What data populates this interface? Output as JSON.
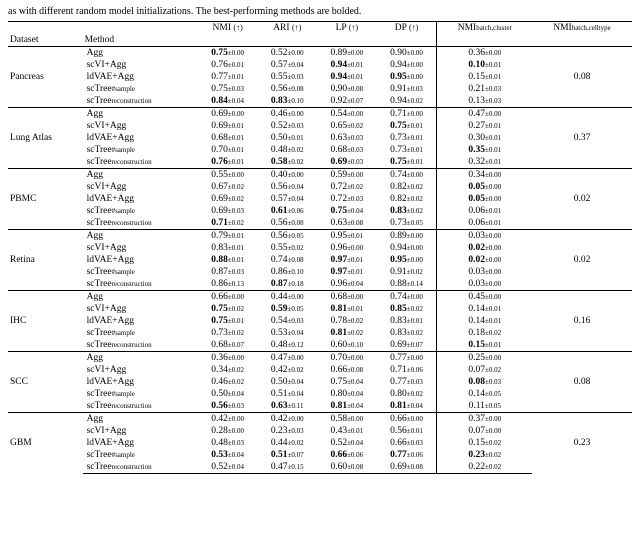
{
  "caption_fragment": "as with different random model initializations. The best-performing methods are bolded.",
  "header": {
    "dataset": "Dataset",
    "method": "Method",
    "nmi": "NMI",
    "ari": "ARI",
    "lp": "LP",
    "dp": "DP",
    "nmi_bc": "NMI",
    "nmi_bc_sub": "batch,cluster",
    "nmi_bt": "NMI",
    "nmi_bt_sub": "batch,celltype",
    "arrow": "(↑)"
  },
  "methods": {
    "agg": "Agg",
    "scvi": "scVI+Agg",
    "ldvae": "ldVAE+Agg",
    "sctree_s": "scTree",
    "sctree_s_sub": "#sample",
    "sctree_r": "scTree",
    "sctree_r_sub": "reconstruction"
  },
  "blocks": [
    {
      "name": "Pancreas",
      "celltype": "0.08",
      "rows": [
        {
          "m": "agg",
          "c": [
            [
              "0.75",
              "0.00",
              1
            ],
            [
              "0.52",
              "0.00",
              0
            ],
            [
              "0.89",
              "0.00",
              0
            ],
            [
              "0.90",
              "0.00",
              0
            ],
            [
              "0.36",
              "0.00",
              0
            ]
          ]
        },
        {
          "m": "scvi",
          "c": [
            [
              "0.76",
              "0.01",
              0
            ],
            [
              "0.57",
              "0.04",
              0
            ],
            [
              "0.94",
              "0.01",
              1
            ],
            [
              "0.94",
              "0.00",
              0
            ],
            [
              "0.10",
              "0.01",
              1
            ]
          ]
        },
        {
          "m": "ldvae",
          "c": [
            [
              "0.77",
              "0.01",
              0
            ],
            [
              "0.55",
              "0.03",
              0
            ],
            [
              "0.94",
              "0.01",
              1
            ],
            [
              "0.95",
              "0.00",
              1
            ],
            [
              "0.15",
              "0.01",
              0
            ]
          ]
        },
        {
          "m": "sctree_s",
          "c": [
            [
              "0.75",
              "0.03",
              0
            ],
            [
              "0.56",
              "0.08",
              0
            ],
            [
              "0.90",
              "0.08",
              0
            ],
            [
              "0.91",
              "0.03",
              0
            ],
            [
              "0.21",
              "0.03",
              0
            ]
          ]
        },
        {
          "m": "sctree_r",
          "c": [
            [
              "0.84",
              "0.04",
              1
            ],
            [
              "0.83",
              "0.10",
              1
            ],
            [
              "0.92",
              "0.07",
              0
            ],
            [
              "0.94",
              "0.02",
              0
            ],
            [
              "0.13",
              "0.03",
              0
            ]
          ]
        }
      ]
    },
    {
      "name": "Lung Atlas",
      "celltype": "0.37",
      "rows": [
        {
          "m": "agg",
          "c": [
            [
              "0.69",
              "0.00",
              0
            ],
            [
              "0.46",
              "0.00",
              0
            ],
            [
              "0.54",
              "0.00",
              0
            ],
            [
              "0.71",
              "0.00",
              0
            ],
            [
              "0.47",
              "0.00",
              0
            ]
          ]
        },
        {
          "m": "scvi",
          "c": [
            [
              "0.69",
              "0.01",
              0
            ],
            [
              "0.52",
              "0.03",
              0
            ],
            [
              "0.65",
              "0.02",
              0
            ],
            [
              "0.75",
              "0.01",
              1
            ],
            [
              "0.27",
              "0.01",
              0
            ]
          ]
        },
        {
          "m": "ldvae",
          "c": [
            [
              "0.68",
              "0.01",
              0
            ],
            [
              "0.50",
              "0.01",
              0
            ],
            [
              "0.63",
              "0.03",
              0
            ],
            [
              "0.73",
              "0.01",
              0
            ],
            [
              "0.30",
              "0.01",
              0
            ]
          ]
        },
        {
          "m": "sctree_s",
          "c": [
            [
              "0.70",
              "0.01",
              0
            ],
            [
              "0.48",
              "0.02",
              0
            ],
            [
              "0.68",
              "0.03",
              0
            ],
            [
              "0.73",
              "0.01",
              0
            ],
            [
              "0.35",
              "0.01",
              1
            ]
          ]
        },
        {
          "m": "sctree_r",
          "c": [
            [
              "0.76",
              "0.01",
              1
            ],
            [
              "0.58",
              "0.02",
              1
            ],
            [
              "0.69",
              "0.03",
              1
            ],
            [
              "0.75",
              "0.01",
              1
            ],
            [
              "0.32",
              "0.01",
              0
            ]
          ]
        }
      ]
    },
    {
      "name": "PBMC",
      "celltype": "0.02",
      "rows": [
        {
          "m": "agg",
          "c": [
            [
              "0.55",
              "0.00",
              0
            ],
            [
              "0.40",
              "0.00",
              0
            ],
            [
              "0.59",
              "0.00",
              0
            ],
            [
              "0.74",
              "0.00",
              0
            ],
            [
              "0.34",
              "0.00",
              0
            ]
          ]
        },
        {
          "m": "scvi",
          "c": [
            [
              "0.67",
              "0.02",
              0
            ],
            [
              "0.56",
              "0.04",
              0
            ],
            [
              "0.72",
              "0.02",
              0
            ],
            [
              "0.82",
              "0.02",
              0
            ],
            [
              "0.05",
              "0.00",
              1
            ]
          ]
        },
        {
          "m": "ldvae",
          "c": [
            [
              "0.69",
              "0.02",
              0
            ],
            [
              "0.57",
              "0.04",
              0
            ],
            [
              "0.72",
              "0.03",
              0
            ],
            [
              "0.82",
              "0.02",
              0
            ],
            [
              "0.05",
              "0.00",
              1
            ]
          ]
        },
        {
          "m": "sctree_s",
          "c": [
            [
              "0.69",
              "0.03",
              0
            ],
            [
              "0.61",
              "0.06",
              1
            ],
            [
              "0.75",
              "0.04",
              1
            ],
            [
              "0.83",
              "0.02",
              1
            ],
            [
              "0.06",
              "0.01",
              0
            ]
          ]
        },
        {
          "m": "sctree_r",
          "c": [
            [
              "0.71",
              "0.02",
              1
            ],
            [
              "0.56",
              "0.08",
              0
            ],
            [
              "0.63",
              "0.08",
              0
            ],
            [
              "0.73",
              "0.05",
              0
            ],
            [
              "0.06",
              "0.01",
              0
            ]
          ]
        }
      ]
    },
    {
      "name": "Retina",
      "celltype": "0.02",
      "rows": [
        {
          "m": "agg",
          "c": [
            [
              "0.79",
              "0.01",
              0
            ],
            [
              "0.56",
              "0.05",
              0
            ],
            [
              "0.95",
              "0.01",
              0
            ],
            [
              "0.89",
              "0.00",
              0
            ],
            [
              "0.03",
              "0.00",
              0
            ]
          ]
        },
        {
          "m": "scvi",
          "c": [
            [
              "0.83",
              "0.01",
              0
            ],
            [
              "0.55",
              "0.02",
              0
            ],
            [
              "0.96",
              "0.00",
              0
            ],
            [
              "0.94",
              "0.00",
              0
            ],
            [
              "0.02",
              "0.00",
              1
            ]
          ]
        },
        {
          "m": "ldvae",
          "c": [
            [
              "0.88",
              "0.01",
              1
            ],
            [
              "0.74",
              "0.08",
              0
            ],
            [
              "0.97",
              "0.01",
              1
            ],
            [
              "0.95",
              "0.00",
              1
            ],
            [
              "0.02",
              "0.00",
              1
            ]
          ]
        },
        {
          "m": "sctree_s",
          "c": [
            [
              "0.87",
              "0.03",
              0
            ],
            [
              "0.86",
              "0.10",
              0
            ],
            [
              "0.97",
              "0.01",
              1
            ],
            [
              "0.91",
              "0.02",
              0
            ],
            [
              "0.03",
              "0.00",
              0
            ]
          ]
        },
        {
          "m": "sctree_r",
          "c": [
            [
              "0.86",
              "0.13",
              0
            ],
            [
              "0.87",
              "0.18",
              1
            ],
            [
              "0.96",
              "0.04",
              0
            ],
            [
              "0.88",
              "0.14",
              0
            ],
            [
              "0.03",
              "0.00",
              0
            ]
          ]
        }
      ]
    },
    {
      "name": "IHC",
      "celltype": "0.16",
      "rows": [
        {
          "m": "agg",
          "c": [
            [
              "0.66",
              "0.00",
              0
            ],
            [
              "0.44",
              "0.00",
              0
            ],
            [
              "0.68",
              "0.00",
              0
            ],
            [
              "0.74",
              "0.00",
              0
            ],
            [
              "0.45",
              "0.00",
              0
            ]
          ]
        },
        {
          "m": "scvi",
          "c": [
            [
              "0.75",
              "0.02",
              1
            ],
            [
              "0.59",
              "0.05",
              1
            ],
            [
              "0.81",
              "0.01",
              1
            ],
            [
              "0.85",
              "0.02",
              1
            ],
            [
              "0.14",
              "0.01",
              0
            ]
          ]
        },
        {
          "m": "ldvae",
          "c": [
            [
              "0.75",
              "0.01",
              1
            ],
            [
              "0.54",
              "0.03",
              0
            ],
            [
              "0.78",
              "0.02",
              0
            ],
            [
              "0.83",
              "0.01",
              0
            ],
            [
              "0.14",
              "0.01",
              0
            ]
          ]
        },
        {
          "m": "sctree_s",
          "c": [
            [
              "0.73",
              "0.02",
              0
            ],
            [
              "0.53",
              "0.04",
              0
            ],
            [
              "0.81",
              "0.02",
              1
            ],
            [
              "0.83",
              "0.02",
              0
            ],
            [
              "0.18",
              "0.02",
              0
            ]
          ]
        },
        {
          "m": "sctree_r",
          "c": [
            [
              "0.68",
              "0.07",
              0
            ],
            [
              "0.48",
              "0.12",
              0
            ],
            [
              "0.60",
              "0.10",
              0
            ],
            [
              "0.69",
              "0.07",
              0
            ],
            [
              "0.15",
              "0.01",
              1
            ]
          ]
        }
      ]
    },
    {
      "name": "SCC",
      "celltype": "0.08",
      "rows": [
        {
          "m": "agg",
          "c": [
            [
              "0.36",
              "0.00",
              0
            ],
            [
              "0.47",
              "0.00",
              0
            ],
            [
              "0.70",
              "0.00",
              0
            ],
            [
              "0.77",
              "0.00",
              0
            ],
            [
              "0.25",
              "0.00",
              0
            ]
          ]
        },
        {
          "m": "scvi",
          "c": [
            [
              "0.34",
              "0.02",
              0
            ],
            [
              "0.42",
              "0.02",
              0
            ],
            [
              "0.66",
              "0.08",
              0
            ],
            [
              "0.71",
              "0.06",
              0
            ],
            [
              "0.07",
              "0.02",
              0
            ]
          ]
        },
        {
          "m": "ldvae",
          "c": [
            [
              "0.46",
              "0.02",
              0
            ],
            [
              "0.50",
              "0.04",
              0
            ],
            [
              "0.75",
              "0.04",
              0
            ],
            [
              "0.77",
              "0.03",
              0
            ],
            [
              "0.08",
              "0.03",
              1
            ]
          ]
        },
        {
          "m": "sctree_s",
          "c": [
            [
              "0.50",
              "0.04",
              0
            ],
            [
              "0.51",
              "0.04",
              0
            ],
            [
              "0.80",
              "0.04",
              0
            ],
            [
              "0.80",
              "0.02",
              0
            ],
            [
              "0.14",
              "0.05",
              0
            ]
          ]
        },
        {
          "m": "sctree_r",
          "c": [
            [
              "0.56",
              "0.03",
              1
            ],
            [
              "0.63",
              "0.11",
              1
            ],
            [
              "0.81",
              "0.04",
              1
            ],
            [
              "0.81",
              "0.04",
              1
            ],
            [
              "0.11",
              "0.05",
              0
            ]
          ]
        }
      ]
    },
    {
      "name": "GBM",
      "celltype": "0.23",
      "rows": [
        {
          "m": "agg",
          "c": [
            [
              "0.42",
              "0.00",
              0
            ],
            [
              "0.42",
              "0.00",
              0
            ],
            [
              "0.58",
              "0.00",
              0
            ],
            [
              "0.66",
              "0.00",
              0
            ],
            [
              "0.37",
              "0.00",
              0
            ]
          ]
        },
        {
          "m": "scvi",
          "c": [
            [
              "0.28",
              "0.00",
              0
            ],
            [
              "0.23",
              "0.03",
              0
            ],
            [
              "0.43",
              "0.01",
              0
            ],
            [
              "0.56",
              "0.01",
              0
            ],
            [
              "0.07",
              "0.00",
              0
            ]
          ]
        },
        {
          "m": "ldvae",
          "c": [
            [
              "0.48",
              "0.03",
              0
            ],
            [
              "0.44",
              "0.02",
              0
            ],
            [
              "0.52",
              "0.04",
              0
            ],
            [
              "0.66",
              "0.03",
              0
            ],
            [
              "0.15",
              "0.02",
              0
            ]
          ]
        },
        {
          "m": "sctree_s",
          "c": [
            [
              "0.53",
              "0.04",
              1
            ],
            [
              "0.51",
              "0.07",
              1
            ],
            [
              "0.66",
              "0.06",
              1
            ],
            [
              "0.77",
              "0.06",
              1
            ],
            [
              "0.23",
              "0.02",
              1
            ]
          ]
        },
        {
          "m": "sctree_r",
          "c": [
            [
              "0.52",
              "0.04",
              0
            ],
            [
              "0.47",
              "0.15",
              0
            ],
            [
              "0.60",
              "0.08",
              0
            ],
            [
              "0.69",
              "0.08",
              0
            ],
            [
              "0.22",
              "0.02",
              0
            ]
          ]
        }
      ]
    }
  ]
}
